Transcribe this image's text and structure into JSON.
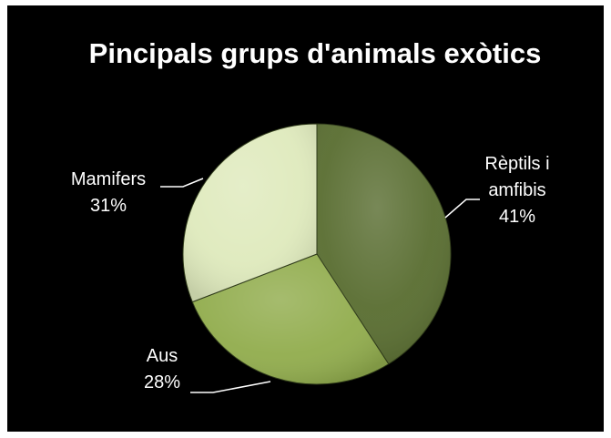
{
  "chart_data": {
    "type": "pie",
    "title": "Pincipals grups d'animals exòtics",
    "slices": [
      {
        "label_lines": [
          "Rèptils i",
          "amfibis"
        ],
        "percent_label": "41%",
        "value": 41,
        "color": "#5a6e32"
      },
      {
        "label_lines": [
          "Aus"
        ],
        "percent_label": "28%",
        "value": 28,
        "color": "#92ad4e"
      },
      {
        "label_lines": [
          "Mamifers"
        ],
        "percent_label": "31%",
        "value": 31,
        "color": "#dfeabd"
      }
    ],
    "legend": "none",
    "background": "#000000",
    "text_color": "#ffffff"
  }
}
